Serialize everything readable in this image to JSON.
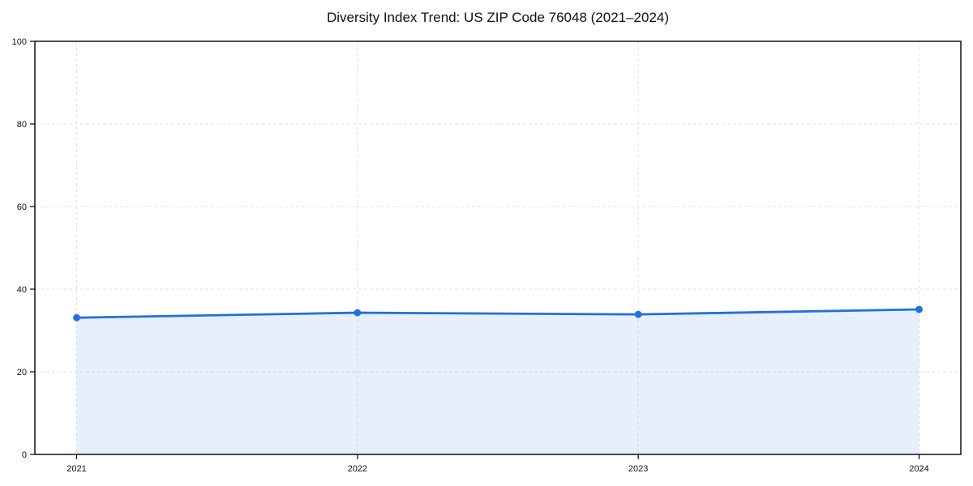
{
  "chart": {
    "title": "Diversity Index Trend: US ZIP Code 76048 (2021–2024)"
  },
  "chart_data": {
    "type": "line",
    "title": "Diversity Index Trend: US ZIP Code 76048 (2021–2024)",
    "x": [
      "2021",
      "2022",
      "2023",
      "2024"
    ],
    "series": [
      {
        "name": "Diversity Index",
        "values": [
          33.1,
          34.3,
          33.9,
          35.1
        ],
        "marker": "circle",
        "area": true
      }
    ],
    "xlabel": "",
    "ylabel": "",
    "ylim": [
      0,
      100
    ],
    "yticks": [
      0,
      20,
      40,
      60,
      80,
      100
    ],
    "grid": true,
    "grid_style": "dashed",
    "legend": "none"
  },
  "colors": {
    "line": "#2170e0",
    "marker": "#2170e0",
    "area_fill": "rgba(33,112,224,0.11)",
    "grid": "#e3e3e3",
    "spine": "#000000",
    "tick": "#000000",
    "text": "#111111",
    "background": "#ffffff"
  }
}
